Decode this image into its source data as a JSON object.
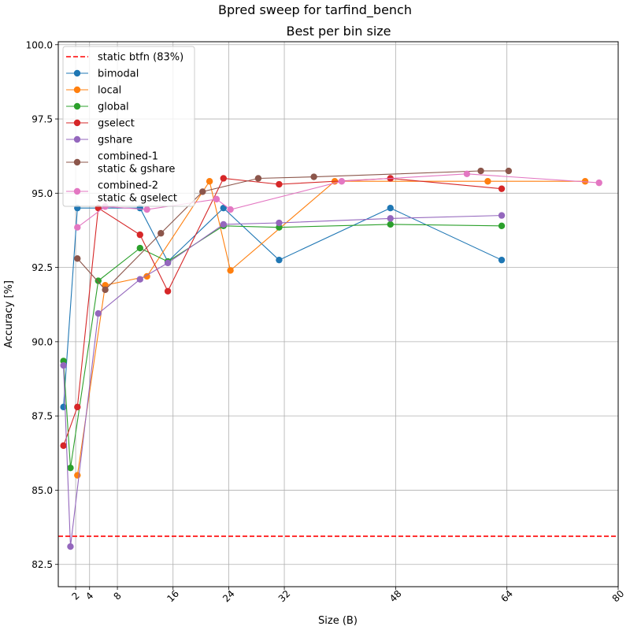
{
  "chart_data": {
    "type": "line",
    "suptitle": "Bpred sweep for tarfind_bench",
    "title": "Best per bin size",
    "xlabel": "Size (B)",
    "ylabel": "Accuracy [%]",
    "xlim": [
      -0.5,
      80
    ],
    "ylim": [
      81.75,
      100.1
    ],
    "xticks": [
      2,
      4,
      8,
      16,
      24,
      32,
      48,
      64,
      80
    ],
    "yticks": [
      82.5,
      85.0,
      87.5,
      90.0,
      92.5,
      95.0,
      97.5,
      100.0
    ],
    "grid": true,
    "legend_position": "top-left",
    "baseline": {
      "name": "static btfn (83%)",
      "y": 83.45,
      "color": "#ff0000"
    },
    "series": [
      {
        "name": "bimodal",
        "color": "#1f77b4",
        "points": [
          [
            0.25,
            87.8
          ],
          [
            2.25,
            94.5
          ],
          [
            11.25,
            94.5
          ],
          [
            15.25,
            92.7
          ],
          [
            23.25,
            94.5
          ],
          [
            31.25,
            92.75
          ],
          [
            47.25,
            94.5
          ],
          [
            63.25,
            92.75
          ]
        ]
      },
      {
        "name": "local",
        "color": "#ff7f0e",
        "points": [
          [
            2.25,
            85.5
          ],
          [
            6.25,
            91.9
          ],
          [
            12.25,
            92.2
          ],
          [
            21.25,
            95.4
          ],
          [
            24.25,
            92.4
          ],
          [
            39.25,
            95.4
          ],
          [
            61.25,
            95.4
          ],
          [
            75.25,
            95.4
          ]
        ]
      },
      {
        "name": "global",
        "color": "#2ca02c",
        "points": [
          [
            0.25,
            89.35
          ],
          [
            1.25,
            85.75
          ],
          [
            5.25,
            92.05
          ],
          [
            11.25,
            93.15
          ],
          [
            15.25,
            92.7
          ],
          [
            23.25,
            93.9
          ],
          [
            31.25,
            93.85
          ],
          [
            47.25,
            93.95
          ],
          [
            63.25,
            93.9
          ]
        ]
      },
      {
        "name": "gselect",
        "color": "#d62728",
        "points": [
          [
            0.25,
            86.5
          ],
          [
            2.25,
            87.8
          ],
          [
            5.25,
            94.5
          ],
          [
            11.25,
            93.6
          ],
          [
            15.25,
            91.7
          ],
          [
            23.25,
            95.5
          ],
          [
            31.25,
            95.3
          ],
          [
            47.25,
            95.5
          ],
          [
            63.25,
            95.15
          ]
        ]
      },
      {
        "name": "gshare",
        "color": "#9467bd",
        "points": [
          [
            0.25,
            89.2
          ],
          [
            1.25,
            83.1
          ],
          [
            5.25,
            90.95
          ],
          [
            11.25,
            92.1
          ],
          [
            15.25,
            92.65
          ],
          [
            23.25,
            93.95
          ],
          [
            31.25,
            94.0
          ],
          [
            47.25,
            94.15
          ],
          [
            63.25,
            94.25
          ]
        ]
      },
      {
        "name": "combined-1\nstatic & gshare",
        "color": "#8c564b",
        "points": [
          [
            2.25,
            92.8
          ],
          [
            6.25,
            91.75
          ],
          [
            14.25,
            93.65
          ],
          [
            20.25,
            95.05
          ],
          [
            28.25,
            95.5
          ],
          [
            36.25,
            95.55
          ],
          [
            60.25,
            95.75
          ],
          [
            64.25,
            95.75
          ]
        ]
      },
      {
        "name": "combined-2\nstatic & gselect",
        "color": "#e377c2",
        "points": [
          [
            2.25,
            93.85
          ],
          [
            6.25,
            94.55
          ],
          [
            12.25,
            94.45
          ],
          [
            22.25,
            94.8
          ],
          [
            24.25,
            94.45
          ],
          [
            40.25,
            95.4
          ],
          [
            58.25,
            95.65
          ],
          [
            77.25,
            95.35
          ]
        ]
      }
    ]
  }
}
